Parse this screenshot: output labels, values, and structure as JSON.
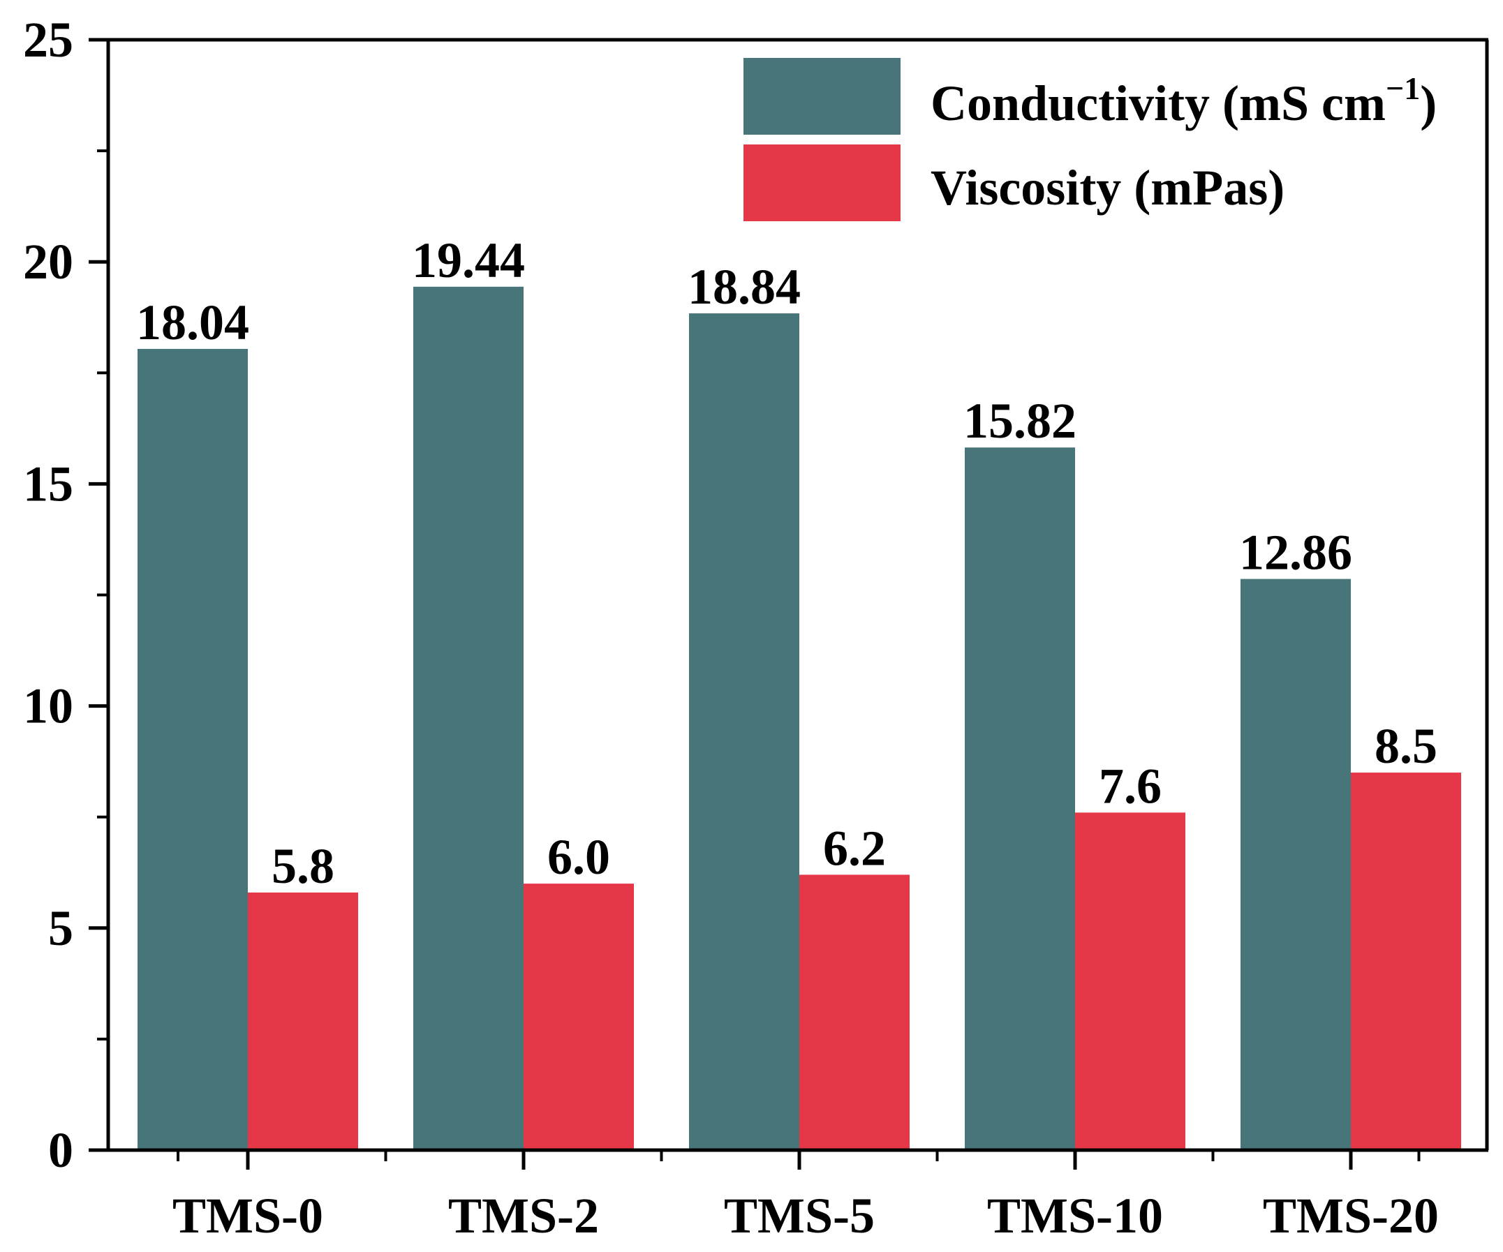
{
  "chart_data": {
    "type": "bar",
    "categories": [
      "TMS-0",
      "TMS-2",
      "TMS-5",
      "TMS-10",
      "TMS-20"
    ],
    "series": [
      {
        "name": "Conductivity (mS cm⁻¹)",
        "name_base": "Conductivity (mS cm",
        "name_sup": "−1",
        "name_close": ")",
        "values": [
          18.04,
          19.44,
          18.84,
          15.82,
          12.86
        ],
        "labels": [
          "18.04",
          "19.44",
          "18.84",
          "15.82",
          "12.86"
        ],
        "color": "#47757A"
      },
      {
        "name": "Viscosity (mPas)",
        "values": [
          5.8,
          6.0,
          6.2,
          7.6,
          8.5
        ],
        "labels": [
          "5.8",
          "6.0",
          "6.2",
          "7.6",
          "8.5"
        ],
        "color": "#E53747"
      }
    ],
    "ylim": [
      0,
      25
    ],
    "yticks": [
      0,
      5,
      10,
      15,
      20,
      25
    ],
    "yticks_labels": [
      "0",
      "5",
      "10",
      "15",
      "20",
      "25"
    ],
    "minor_ytick_step": 2.5,
    "title": "",
    "xlabel": "",
    "ylabel": "",
    "legend_position": "top-right"
  }
}
